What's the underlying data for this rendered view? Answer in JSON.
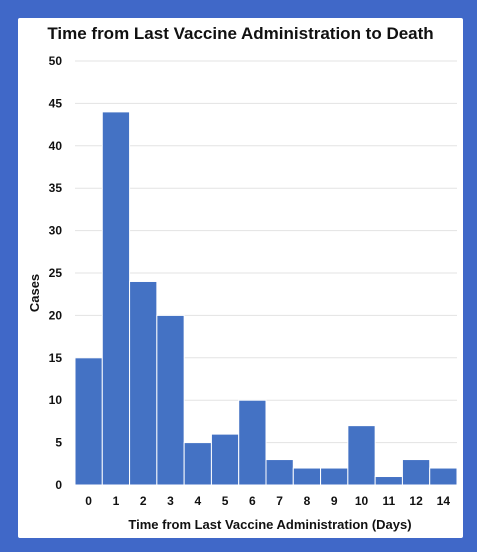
{
  "chart_data": {
    "type": "bar",
    "title": "Time from Last Vaccine Administration to Death",
    "xlabel": "Time from Last Vaccine Administration (Days)",
    "ylabel": "Cases",
    "categories": [
      "0",
      "1",
      "2",
      "3",
      "4",
      "5",
      "6",
      "7",
      "8",
      "9",
      "10",
      "11",
      "12",
      "14"
    ],
    "values": [
      15,
      44,
      24,
      20,
      5,
      6,
      10,
      3,
      2,
      2,
      7,
      1,
      3,
      2
    ],
    "ylim": [
      0,
      50
    ],
    "yticks": [
      "0",
      "5",
      "10",
      "15",
      "20",
      "25",
      "30",
      "35",
      "40",
      "45",
      "50"
    ],
    "grid": true,
    "bar_color": "#4472c4",
    "frame_color": "#4068c8"
  }
}
